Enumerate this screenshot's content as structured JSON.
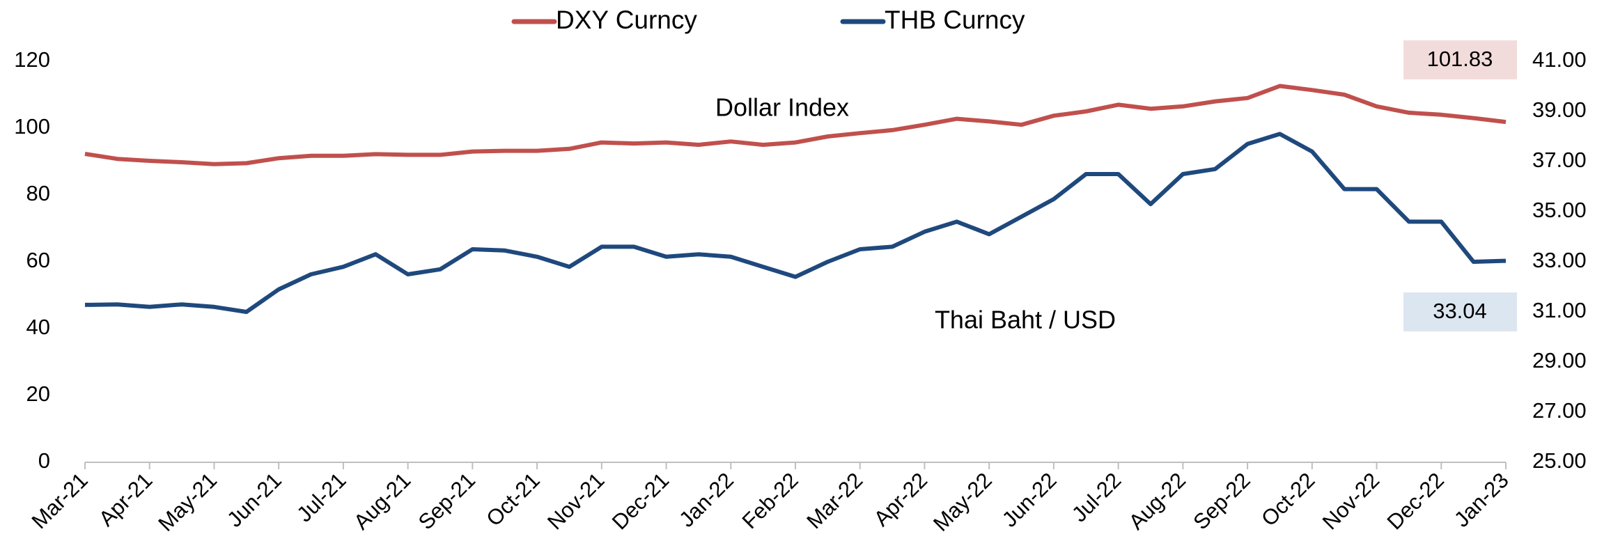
{
  "chart_data": {
    "type": "line",
    "categories": [
      "Mar-21",
      null,
      "Apr-21",
      null,
      "May-21",
      null,
      "Jun-21",
      null,
      "Jul-21",
      null,
      "Aug-21",
      null,
      "Sep-21",
      null,
      "Oct-21",
      null,
      "Nov-21",
      null,
      "Dec-21",
      null,
      "Jan-22",
      null,
      "Feb-22",
      null,
      "Mar-22",
      null,
      "Apr-22",
      null,
      "May-22",
      null,
      "Jun-22",
      null,
      "Jul-22",
      null,
      "Aug-22",
      null,
      "Sep-22",
      null,
      "Oct-22",
      null,
      "Nov-22",
      null,
      "Dec-22",
      null,
      "Jan-23"
    ],
    "series": [
      {
        "name": "DXY Curncy",
        "color": "#c0504d",
        "values": [
          92.3,
          90.8,
          90.2,
          89.8,
          89.2,
          89.5,
          91,
          91.7,
          91.7,
          92.2,
          92,
          92,
          93,
          93.2,
          93.2,
          93.8,
          95.7,
          95.4,
          95.7,
          95,
          96,
          95,
          95.7,
          97.5,
          98.5,
          99.4,
          101,
          102.8,
          102,
          101,
          103.7,
          105,
          107,
          105.8,
          106.5,
          108,
          109,
          112.6,
          111.4,
          110,
          106.5,
          104.6,
          104,
          103,
          101.83
        ]
      },
      {
        "name": "THB Curncy",
        "color": "#1f497d",
        "axis": "y2",
        "values": [
          31.28,
          31.3,
          31.2,
          31.3,
          31.2,
          31.0,
          31.9,
          32.5,
          32.8,
          33.3,
          32.5,
          32.7,
          33.5,
          33.45,
          33.2,
          32.8,
          33.6,
          33.6,
          33.2,
          33.3,
          33.2,
          32.8,
          32.4,
          33.0,
          33.5,
          33.6,
          34.2,
          34.6,
          34.1,
          34.8,
          35.5,
          36.5,
          36.5,
          35.3,
          36.5,
          36.7,
          37.7,
          38.1,
          37.4,
          35.9,
          35.9,
          34.6,
          34.6,
          33.0,
          33.04
        ]
      }
    ],
    "ylim": [
      0,
      120
    ],
    "yticks": [
      0,
      20,
      40,
      60,
      80,
      100,
      120
    ],
    "y2lim": [
      25,
      41
    ],
    "y2ticks": [
      {
        "value": 25,
        "label": "25.00"
      },
      {
        "value": 27,
        "label": "27.00"
      },
      {
        "value": 29,
        "label": "29.00"
      },
      {
        "value": 31,
        "label": "31.00"
      },
      {
        "value": 33,
        "label": "33.00"
      },
      {
        "value": 35,
        "label": "35.00"
      },
      {
        "value": 37,
        "label": "37.00"
      },
      {
        "value": 39,
        "label": "39.00"
      },
      {
        "value": 41,
        "label": "41.00"
      }
    ],
    "annotations": [
      "Dollar Index",
      "Thai Baht / USD"
    ],
    "legend": "top"
  }
}
